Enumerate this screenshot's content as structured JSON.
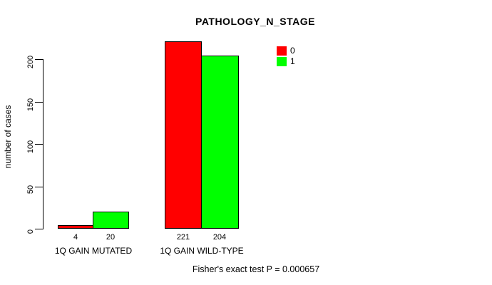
{
  "title": "PATHOLOGY_N_STAGE",
  "footer": "Fisher's exact test P = 0.000657",
  "colors": {
    "series_red": "#ff0000",
    "series_green": "#00ff00",
    "axis": "#000000",
    "background": "#ffffff",
    "text": "#000000"
  },
  "legend": {
    "entries": [
      {
        "label": "0",
        "color": "#ff0000"
      },
      {
        "label": "1",
        "color": "#00ff00"
      }
    ]
  },
  "chart_data": {
    "type": "bar",
    "title": "PATHOLOGY_N_STAGE",
    "categories": [
      "1Q GAIN MUTATED",
      "1Q GAIN WILD-TYPE"
    ],
    "series": [
      {
        "name": "0",
        "color": "#ff0000",
        "values": [
          4,
          221
        ]
      },
      {
        "name": "1",
        "color": "#00ff00",
        "values": [
          20,
          204
        ]
      }
    ],
    "xlabel": "",
    "ylabel": "number of cases",
    "ylim": [
      0,
      230
    ],
    "yticks": [
      0,
      50,
      100,
      150,
      200
    ],
    "grid": false,
    "legend_position": "top-right",
    "bar_value_labels": [
      [
        4,
        20
      ],
      [
        221,
        204
      ]
    ],
    "annotation": "Fisher's exact test P = 0.000657"
  }
}
